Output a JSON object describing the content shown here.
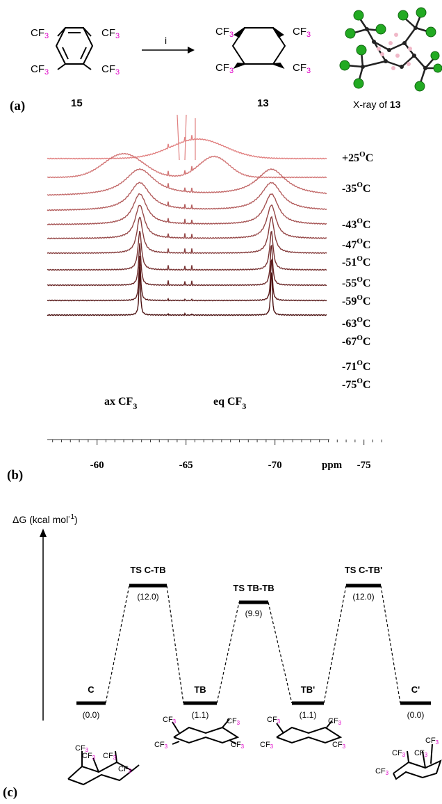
{
  "colors": {
    "magenta": "#e000c8",
    "trace_light": "#e08080",
    "trace_mid": "#c05050",
    "trace_dark": "#4a1010",
    "chlorine_green": "#22aa22",
    "hydrogen_pink": "#f0b8c8"
  },
  "panel_a": {
    "cf_prefix": "CF",
    "cf_sub": "3",
    "arrow_label": "i",
    "label": "(a)",
    "start_compound": "15",
    "product_compound": "13",
    "xray_text": "X-ray of ",
    "xray_compound": "13"
  },
  "panel_b": {
    "label": "(b)",
    "peak_ax_text": "ax CF",
    "peak_eq_text": "eq CF",
    "peak_sub": "3",
    "temperatures": [
      "+25",
      "-35",
      "-43",
      "-47",
      "-51",
      "-55",
      "-59",
      "-63",
      "-67",
      "-71",
      "-75"
    ],
    "deg_symbol": "O",
    "deg_unit": "C",
    "x_ticks": [
      "-60",
      "-65",
      "-70",
      "-75"
    ],
    "x_unit": "ppm"
  },
  "panel_c": {
    "label": "(c)",
    "y_axis_label": "ΔG (kcal mol",
    "y_axis_sup": "-1",
    "y_axis_close": ")",
    "levels": [
      {
        "name": "C",
        "value": "(0.0)"
      },
      {
        "name": "TS C-TB",
        "value": "(12.0)"
      },
      {
        "name": "TB",
        "value": "(1.1)"
      },
      {
        "name": "TS TB-TB",
        "value": "(9.9)"
      },
      {
        "name": "TB'",
        "value": "(1.1)"
      },
      {
        "name": "TS C-TB'",
        "value": "(12.0)"
      },
      {
        "name": "C'",
        "value": "(0.0)"
      }
    ]
  }
}
